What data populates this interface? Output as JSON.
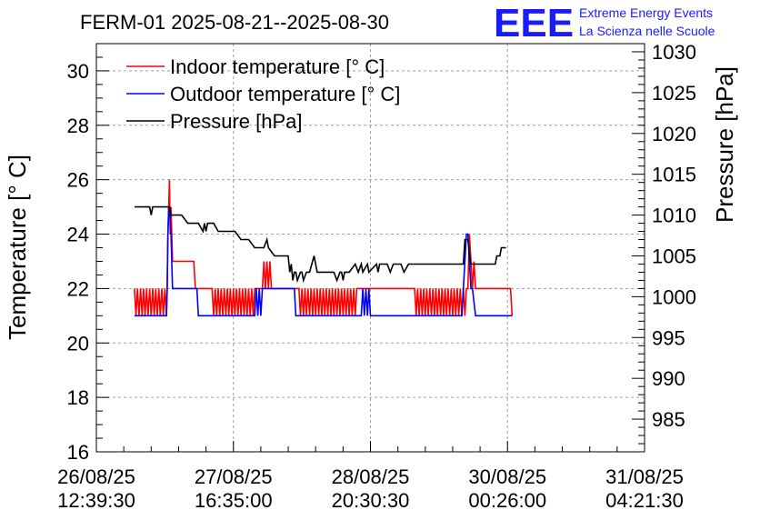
{
  "chart_data": {
    "type": "line",
    "title": "FERM-01 2025-08-21--2025-08-30",
    "brand": {
      "logo": "EEE",
      "line1": "Extreme Energy Events",
      "line2": "La Scienza nelle Scuole"
    },
    "ylabel_left": "Temperature [° C]",
    "ylabel_right": "Pressure [hPa]",
    "xlim": [
      0,
      360
    ],
    "ylim_left": [
      16,
      31
    ],
    "ylim_right": [
      981,
      1031
    ],
    "x_ticks": [
      {
        "x": 0,
        "line1": "26/08/25",
        "line2": "12:39:30"
      },
      {
        "x": 90,
        "line1": "27/08/25",
        "line2": "16:35:00"
      },
      {
        "x": 180,
        "line1": "28/08/25",
        "line2": "20:30:30"
      },
      {
        "x": 270,
        "line1": "30/08/25",
        "line2": "00:26:00"
      },
      {
        "x": 360,
        "line1": "31/08/25",
        "line2": "04:21:30"
      }
    ],
    "y_ticks_left": [
      "16",
      "18",
      "20",
      "22",
      "24",
      "26",
      "28",
      "30"
    ],
    "y_ticks_right": [
      "985",
      "990",
      "995",
      "1000",
      "1005",
      "1010",
      "1015",
      "1020",
      "1025",
      "1030"
    ],
    "legend": [
      {
        "label": "Indoor temperature [° C]",
        "color": "#ff0000"
      },
      {
        "label": "Outdoor temperature [° C]",
        "color": "#0000ff"
      },
      {
        "label": "Pressure [hPa]",
        "color": "#000000"
      }
    ],
    "series": [
      {
        "name": "Indoor temperature [° C]",
        "axis": "left",
        "color": "#ff0000",
        "points": [
          [
            25,
            22
          ],
          [
            26,
            21
          ],
          [
            27,
            22
          ],
          [
            28,
            21
          ],
          [
            29,
            22
          ],
          [
            30,
            21
          ],
          [
            31,
            22
          ],
          [
            32,
            21
          ],
          [
            33,
            22
          ],
          [
            34,
            21
          ],
          [
            35,
            22
          ],
          [
            36,
            21
          ],
          [
            37,
            22
          ],
          [
            38,
            21
          ],
          [
            39,
            22
          ],
          [
            40,
            21
          ],
          [
            41,
            22
          ],
          [
            42,
            21
          ],
          [
            43,
            22
          ],
          [
            44,
            21
          ],
          [
            45,
            22
          ],
          [
            46,
            21
          ],
          [
            46.5,
            22
          ],
          [
            47,
            24
          ],
          [
            47.5,
            25
          ],
          [
            48,
            26
          ],
          [
            48.5,
            24
          ],
          [
            49,
            25
          ],
          [
            50,
            23
          ],
          [
            51,
            23
          ],
          [
            53,
            23
          ],
          [
            55,
            23
          ],
          [
            58,
            23
          ],
          [
            62,
            23
          ],
          [
            64,
            23
          ],
          [
            65,
            22
          ],
          [
            76,
            22
          ],
          [
            77,
            21
          ],
          [
            78,
            22
          ],
          [
            79,
            21
          ],
          [
            80,
            22
          ],
          [
            81,
            21
          ],
          [
            82,
            22
          ],
          [
            83,
            21
          ],
          [
            84,
            22
          ],
          [
            85,
            21
          ],
          [
            86,
            22
          ],
          [
            87,
            21
          ],
          [
            88,
            22
          ],
          [
            89,
            21
          ],
          [
            90,
            22
          ],
          [
            91,
            21
          ],
          [
            92,
            22
          ],
          [
            93,
            21
          ],
          [
            94,
            22
          ],
          [
            95,
            21
          ],
          [
            96,
            22
          ],
          [
            97,
            21
          ],
          [
            98,
            22
          ],
          [
            99,
            21
          ],
          [
            100,
            22
          ],
          [
            101,
            21
          ],
          [
            102,
            22
          ],
          [
            103,
            21
          ],
          [
            104,
            22
          ],
          [
            109,
            22
          ],
          [
            110,
            23
          ],
          [
            111,
            22
          ],
          [
            112,
            23
          ],
          [
            113,
            22
          ],
          [
            114,
            23
          ],
          [
            115,
            22
          ],
          [
            118,
            22
          ],
          [
            130,
            22
          ],
          [
            133,
            22
          ],
          [
            134,
            21
          ],
          [
            135,
            22
          ],
          [
            136,
            21
          ],
          [
            137,
            22
          ],
          [
            138,
            21
          ],
          [
            139,
            22
          ],
          [
            140,
            21
          ],
          [
            141,
            22
          ],
          [
            142,
            21
          ],
          [
            143,
            22
          ],
          [
            144,
            21
          ],
          [
            145,
            22
          ],
          [
            146,
            21
          ],
          [
            147,
            22
          ],
          [
            148,
            21
          ],
          [
            149,
            22
          ],
          [
            150,
            21
          ],
          [
            151,
            22
          ],
          [
            152,
            21
          ],
          [
            153,
            22
          ],
          [
            154,
            21
          ],
          [
            155,
            22
          ],
          [
            156,
            21
          ],
          [
            157,
            22
          ],
          [
            158,
            21
          ],
          [
            159,
            22
          ],
          [
            160,
            21
          ],
          [
            161,
            22
          ],
          [
            162,
            21
          ],
          [
            163,
            22
          ],
          [
            164,
            21
          ],
          [
            165,
            22
          ],
          [
            166,
            21
          ],
          [
            167,
            22
          ],
          [
            168,
            21
          ],
          [
            169,
            22
          ],
          [
            170,
            21
          ],
          [
            171,
            22
          ],
          [
            180,
            22
          ],
          [
            200,
            22
          ],
          [
            209,
            22
          ],
          [
            210,
            21
          ],
          [
            211,
            22
          ],
          [
            212,
            21
          ],
          [
            213,
            22
          ],
          [
            214,
            21
          ],
          [
            215,
            22
          ],
          [
            216,
            21
          ],
          [
            217,
            22
          ],
          [
            218,
            21
          ],
          [
            219,
            22
          ],
          [
            220,
            21
          ],
          [
            221,
            22
          ],
          [
            222,
            21
          ],
          [
            223,
            22
          ],
          [
            224,
            21
          ],
          [
            225,
            22
          ],
          [
            226,
            21
          ],
          [
            227,
            22
          ],
          [
            228,
            21
          ],
          [
            229,
            22
          ],
          [
            230,
            21
          ],
          [
            231,
            22
          ],
          [
            232,
            21
          ],
          [
            233,
            22
          ],
          [
            234,
            21
          ],
          [
            235,
            22
          ],
          [
            236,
            21
          ],
          [
            237,
            22
          ],
          [
            238,
            21
          ],
          [
            239,
            22
          ],
          [
            240,
            21
          ],
          [
            241,
            22
          ],
          [
            242,
            21
          ],
          [
            243,
            22
          ],
          [
            244,
            22
          ],
          [
            245,
            24
          ],
          [
            246,
            23
          ],
          [
            247,
            22
          ],
          [
            248,
            23
          ],
          [
            249,
            22
          ],
          [
            255,
            22
          ],
          [
            260,
            22
          ],
          [
            270,
            22
          ],
          [
            272,
            22
          ],
          [
            273,
            21
          ]
        ]
      },
      {
        "name": "Outdoor temperature [° C]",
        "axis": "left",
        "color": "#0000ff",
        "points": [
          [
            25,
            21
          ],
          [
            46,
            21
          ],
          [
            46.5,
            22
          ],
          [
            47,
            24
          ],
          [
            47.5,
            25
          ],
          [
            48,
            25
          ],
          [
            49,
            24
          ],
          [
            50,
            22
          ],
          [
            51,
            22
          ],
          [
            52,
            22
          ],
          [
            62,
            22
          ],
          [
            64,
            22
          ],
          [
            66,
            22
          ],
          [
            67,
            21
          ],
          [
            85,
            21
          ],
          [
            95,
            21
          ],
          [
            104,
            21
          ],
          [
            105,
            22
          ],
          [
            106,
            21
          ],
          [
            107,
            22
          ],
          [
            108,
            21
          ],
          [
            109,
            22
          ],
          [
            110,
            22
          ],
          [
            111,
            22
          ],
          [
            113,
            22
          ],
          [
            120,
            22
          ],
          [
            130,
            22
          ],
          [
            131,
            21
          ],
          [
            140,
            21
          ],
          [
            160,
            21
          ],
          [
            174,
            21
          ],
          [
            175,
            22
          ],
          [
            176,
            21
          ],
          [
            177,
            22
          ],
          [
            178,
            21
          ],
          [
            179,
            22
          ],
          [
            180,
            21
          ],
          [
            200,
            21
          ],
          [
            210,
            21
          ],
          [
            220,
            21
          ],
          [
            240,
            21
          ],
          [
            241,
            22
          ],
          [
            242,
            23
          ],
          [
            243,
            24
          ],
          [
            244,
            24
          ],
          [
            245,
            23
          ],
          [
            246,
            22
          ],
          [
            247,
            22
          ],
          [
            249,
            21
          ],
          [
            260,
            21
          ],
          [
            273,
            21
          ]
        ]
      },
      {
        "name": "Pressure [hPa]",
        "axis": "right",
        "color": "#000000",
        "points": [
          [
            25,
            1011
          ],
          [
            35,
            1011
          ],
          [
            36,
            1010
          ],
          [
            37,
            1011
          ],
          [
            48,
            1011
          ],
          [
            49,
            1010
          ],
          [
            55,
            1010
          ],
          [
            56,
            1010
          ],
          [
            60,
            1009
          ],
          [
            62,
            1009
          ],
          [
            67,
            1009
          ],
          [
            70,
            1008
          ],
          [
            71,
            1009
          ],
          [
            72,
            1008
          ],
          [
            73,
            1009
          ],
          [
            75,
            1009
          ],
          [
            77,
            1009
          ],
          [
            80,
            1008
          ],
          [
            82,
            1008
          ],
          [
            91,
            1008
          ],
          [
            95,
            1007
          ],
          [
            100,
            1007
          ],
          [
            104,
            1006
          ],
          [
            106,
            1006
          ],
          [
            110,
            1006
          ],
          [
            112,
            1007
          ],
          [
            113,
            1006
          ],
          [
            117,
            1005
          ],
          [
            121,
            1005
          ],
          [
            126,
            1005
          ],
          [
            127,
            1003
          ],
          [
            128,
            1004
          ],
          [
            129,
            1002
          ],
          [
            130,
            1003
          ],
          [
            131,
            1003
          ],
          [
            132,
            1002
          ],
          [
            134,
            1003
          ],
          [
            135,
            1003
          ],
          [
            136,
            1002
          ],
          [
            138,
            1003
          ],
          [
            140,
            1003
          ],
          [
            143,
            1005
          ],
          [
            145,
            1003
          ],
          [
            149,
            1003
          ],
          [
            153,
            1003
          ],
          [
            156,
            1003
          ],
          [
            158,
            1002
          ],
          [
            160,
            1003
          ],
          [
            161,
            1003
          ],
          [
            162,
            1002
          ],
          [
            163,
            1003
          ],
          [
            166,
            1003
          ],
          [
            170,
            1004
          ],
          [
            172,
            1003
          ],
          [
            174,
            1004
          ],
          [
            175,
            1003
          ],
          [
            178,
            1004
          ],
          [
            179,
            1003
          ],
          [
            184,
            1004
          ],
          [
            185,
            1003
          ],
          [
            186,
            1004
          ],
          [
            191,
            1004
          ],
          [
            193,
            1003
          ],
          [
            195,
            1004
          ],
          [
            199,
            1004
          ],
          [
            200,
            1004
          ],
          [
            202,
            1003
          ],
          [
            205,
            1004
          ],
          [
            208,
            1004
          ],
          [
            210,
            1004
          ],
          [
            212,
            1004
          ],
          [
            216,
            1004
          ],
          [
            219,
            1004
          ],
          [
            222,
            1004
          ],
          [
            227,
            1004
          ],
          [
            231,
            1004
          ],
          [
            235,
            1004
          ],
          [
            238,
            1004
          ],
          [
            241,
            1004
          ],
          [
            242,
            1007
          ],
          [
            244,
            1007
          ],
          [
            246,
            1004
          ],
          [
            250,
            1004
          ],
          [
            255,
            1004
          ],
          [
            262,
            1004
          ],
          [
            263,
            1005
          ],
          [
            265,
            1005
          ],
          [
            266,
            1006
          ],
          [
            269,
            1006
          ]
        ]
      }
    ]
  }
}
